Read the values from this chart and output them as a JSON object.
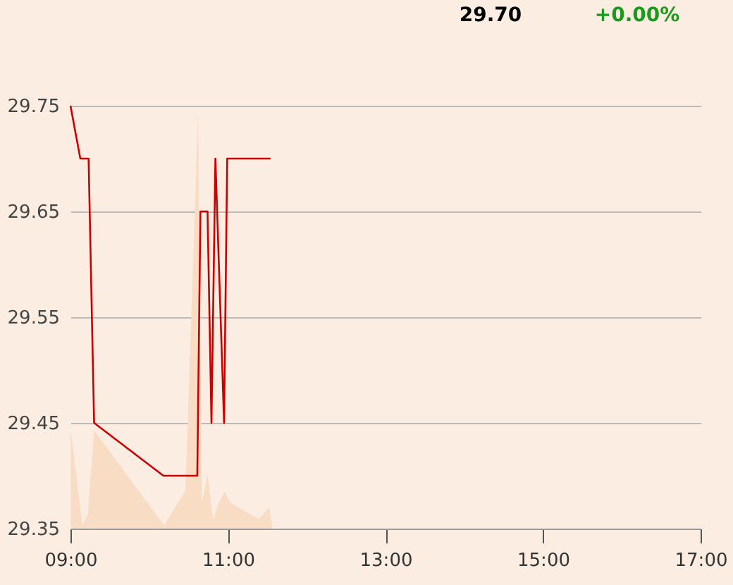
{
  "chart_data": {
    "type": "line",
    "annotations": [
      "29.70",
      "+0.00%"
    ],
    "xlim": [
      9,
      17
    ],
    "xticks": [
      {
        "value": 9,
        "label": "09:00"
      },
      {
        "value": 11,
        "label": "11:00"
      },
      {
        "value": 13,
        "label": "13:00"
      },
      {
        "value": 15,
        "label": "15:00"
      },
      {
        "value": 17,
        "label": "17:00"
      }
    ],
    "ylim": [
      29.35,
      29.75
    ],
    "yticks": [
      29.35,
      29.45,
      29.55,
      29.65,
      29.75
    ],
    "grid": "y",
    "series": [
      {
        "type": "area",
        "color": "#f8dcc4",
        "x": [
          9.005,
          9.15,
          9.22,
          9.3,
          10.19,
          10.46,
          10.62,
          10.67,
          10.74,
          10.81,
          10.88,
          10.96,
          11.02,
          11.39,
          11.52,
          11.56
        ],
        "values": [
          29.443,
          29.353,
          29.363,
          29.443,
          29.353,
          29.386,
          29.743,
          29.374,
          29.401,
          29.358,
          29.374,
          29.385,
          29.375,
          29.359,
          29.37,
          29.353
        ]
      },
      {
        "type": "line",
        "color": "#cc0000",
        "x": [
          9.0,
          9.125,
          9.23,
          9.3,
          10.18,
          10.61,
          10.65,
          10.74,
          10.79,
          10.84,
          10.95,
          10.99,
          11.54
        ],
        "values": [
          29.75,
          29.7,
          29.7,
          29.45,
          29.4,
          29.4,
          29.65,
          29.65,
          29.45,
          29.7,
          29.45,
          29.7,
          29.7
        ]
      }
    ]
  }
}
